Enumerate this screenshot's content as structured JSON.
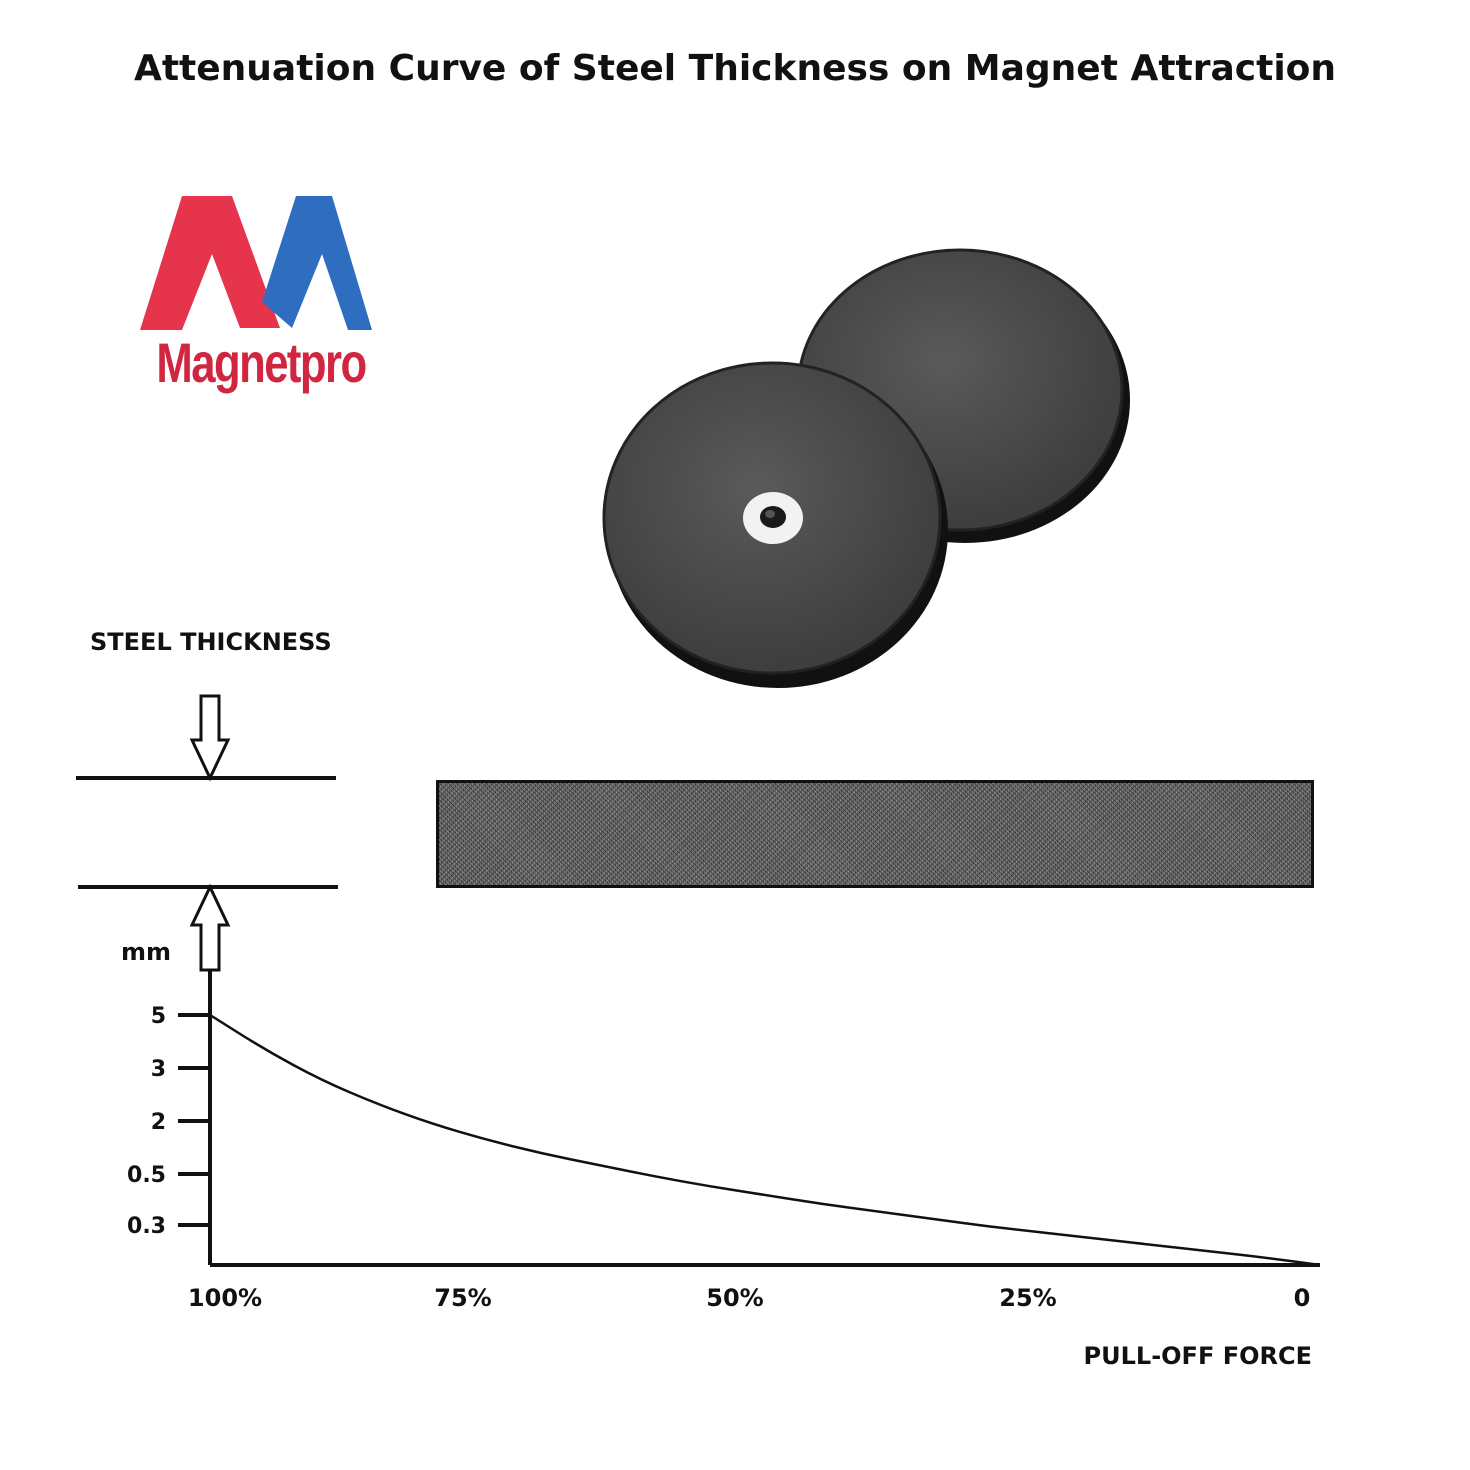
{
  "title": "Attenuation Curve of Steel Thickness on Magnet Attraction",
  "logo": {
    "text": "Magnetpro",
    "colors": {
      "red": "#e5344c",
      "blue": "#2f6dc0",
      "text_red": "#d0263f"
    }
  },
  "diagram": {
    "steel_thickness_label": "STEEL THICKNESS"
  },
  "chart_data": {
    "type": "line",
    "title": "Attenuation Curve of Steel Thickness on Magnet Attraction",
    "ylabel": "STEEL THICKNESS",
    "yunit": "mm",
    "xlabel": "PULL-OFF FORCE",
    "y_ticks": [
      "5",
      "3",
      "2",
      "0.5",
      "0.3"
    ],
    "x_ticks": [
      "100%",
      "75%",
      "50%",
      "25%",
      "0"
    ],
    "x_tick_values": [
      100,
      75,
      50,
      25,
      0
    ],
    "series": [
      {
        "x_percent": [
          100,
          95,
          90,
          85,
          80,
          75,
          70,
          65,
          60,
          55,
          50,
          45,
          40,
          35,
          30,
          25,
          20,
          15,
          10,
          5,
          0
        ],
        "y_level": [
          1.0,
          0.86,
          0.74,
          0.645,
          0.565,
          0.5,
          0.445,
          0.4,
          0.355,
          0.315,
          0.28,
          0.245,
          0.215,
          0.185,
          0.155,
          0.13,
          0.105,
          0.08,
          0.055,
          0.03,
          0.0
        ]
      }
    ],
    "grid": false,
    "colors": {
      "line": "#111111",
      "axis": "#111111"
    }
  }
}
